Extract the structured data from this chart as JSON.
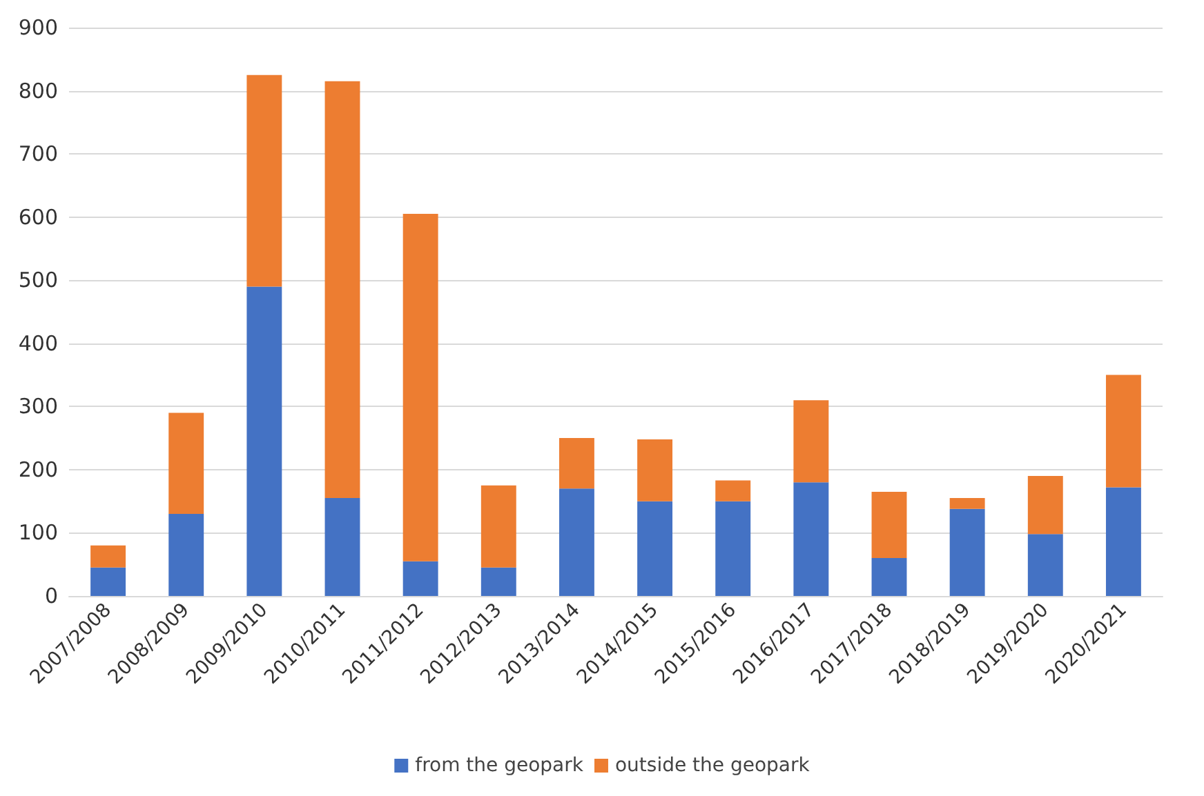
{
  "chart_data": {
    "type": "bar",
    "stacked": true,
    "categories": [
      "2007/2008",
      "2008/2009",
      "2009/2010",
      "2010/2011",
      "2011/2012",
      "2012/2013",
      "2013/2014",
      "2014/2015",
      "2015/2016",
      "2016/2017",
      "2017/2018",
      "2018/2019",
      "2019/2020",
      "2020/2021"
    ],
    "series": [
      {
        "name": "from the geopark",
        "color": "#4472c4",
        "values": [
          45,
          130,
          490,
          155,
          55,
          45,
          170,
          150,
          150,
          180,
          60,
          138,
          98,
          172
        ]
      },
      {
        "name": "outside the geopark",
        "color": "#ed7d31",
        "values": [
          35,
          160,
          335,
          660,
          550,
          130,
          80,
          98,
          33,
          130,
          105,
          17,
          92,
          178
        ]
      }
    ],
    "ylim": [
      0,
      900
    ],
    "yticks": [
      0,
      100,
      200,
      300,
      400,
      500,
      600,
      700,
      800,
      900
    ],
    "grid": "y",
    "legend": "bottom"
  }
}
